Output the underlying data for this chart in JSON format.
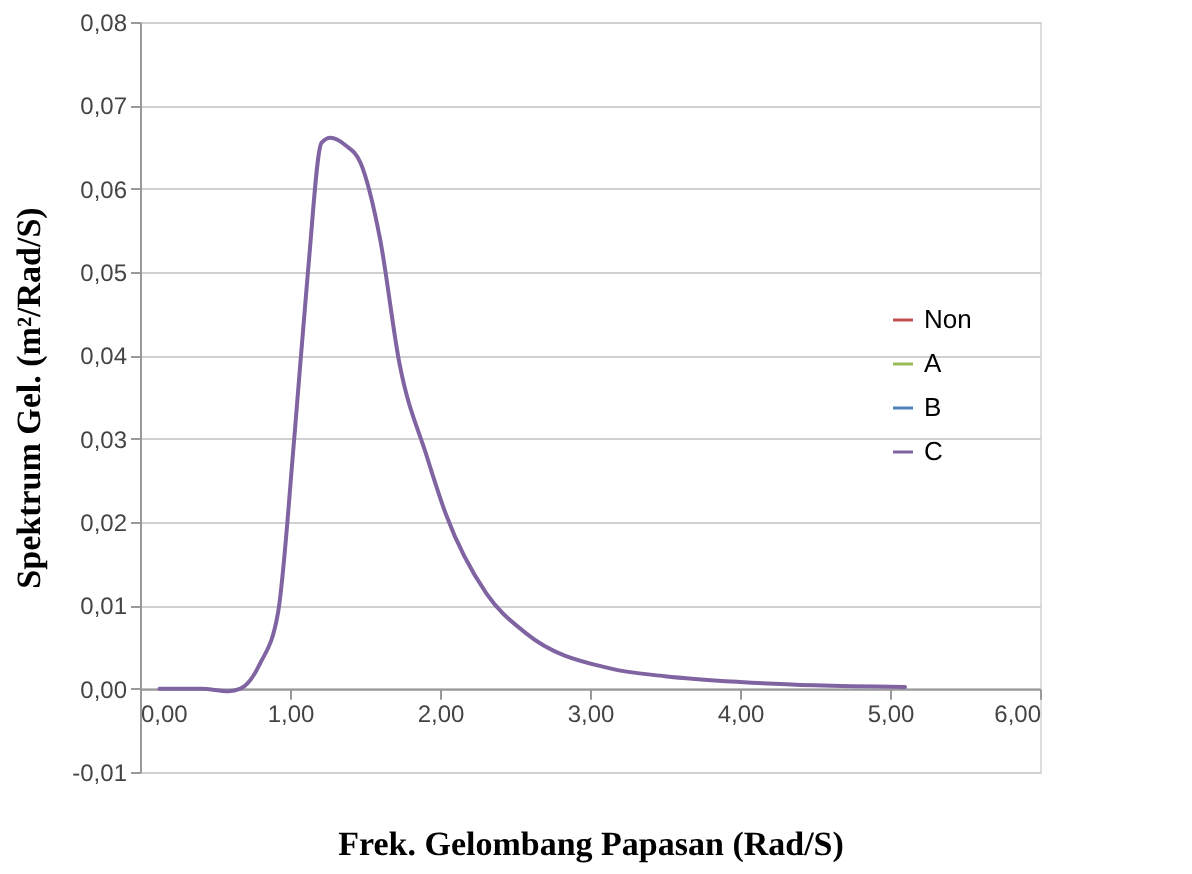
{
  "chart_data": {
    "type": "line",
    "xlabel": "Frek. Gelombang Papasan (Rad/S)",
    "ylabel": "Spektrum Gel. (m²/Rad/S)",
    "x": [
      0.13,
      0.41,
      0.59,
      0.67,
      0.8,
      0.92,
      1.03,
      1.12,
      1.21,
      1.27,
      1.37,
      1.47,
      1.6,
      1.73,
      1.91,
      2.04,
      2.31,
      2.57,
      3.14,
      3.5,
      4.0,
      4.5,
      5.1
    ],
    "series": [
      {
        "name": "Non",
        "color": "#c0504d",
        "values": [
          null,
          null,
          null,
          null,
          null,
          null,
          null,
          null,
          null,
          null,
          null,
          null,
          null,
          null,
          null,
          null,
          null,
          null,
          null,
          null,
          null,
          null,
          null
        ]
      },
      {
        "name": "A",
        "color": "#9bbb59",
        "values": [
          null,
          null,
          null,
          null,
          null,
          null,
          null,
          null,
          null,
          null,
          null,
          null,
          null,
          null,
          null,
          null,
          null,
          null,
          null,
          null,
          null,
          null,
          null
        ]
      },
      {
        "name": "B",
        "color": "#4f81bd",
        "values": [
          null,
          null,
          null,
          null,
          null,
          null,
          null,
          null,
          null,
          null,
          null,
          null,
          null,
          null,
          null,
          null,
          null,
          null,
          null,
          null,
          null,
          null,
          null
        ]
      },
      {
        "name": "C",
        "color": "#8064a2",
        "values": [
          0,
          0,
          -0.0003,
          0,
          0.003,
          0.0091,
          0.0304,
          0.0501,
          0.0655,
          0.0661,
          0.0652,
          0.0631,
          0.054,
          0.039,
          0.028,
          0.0209,
          0.0114,
          0.0067,
          0.0024,
          0.0015,
          0.0008,
          0.0004,
          0.0002
        ]
      }
    ],
    "xlim": [
      0,
      6
    ],
    "xticks": [
      {
        "value": 0,
        "label": "0,00"
      },
      {
        "value": 1,
        "label": "1,00"
      },
      {
        "value": 2,
        "label": "2,00"
      },
      {
        "value": 3,
        "label": "3,00"
      },
      {
        "value": 4,
        "label": "4,00"
      },
      {
        "value": 5,
        "label": "5,00"
      },
      {
        "value": 6,
        "label": "6,00"
      }
    ],
    "ylim": [
      -0.01,
      0.08
    ],
    "yticks": [
      {
        "value": -0.01,
        "label": "-0,01"
      },
      {
        "value": 0,
        "label": "0,00"
      },
      {
        "value": 0.01,
        "label": "0,01"
      },
      {
        "value": 0.02,
        "label": "0,02"
      },
      {
        "value": 0.03,
        "label": "0,03"
      },
      {
        "value": 0.04,
        "label": "0,04"
      },
      {
        "value": 0.05,
        "label": "0,05"
      },
      {
        "value": 0.06,
        "label": "0,06"
      },
      {
        "value": 0.07,
        "label": "0,07"
      },
      {
        "value": 0.08,
        "label": "0,08"
      }
    ],
    "grid": "y",
    "legend": "right",
    "marker": "none",
    "line_style": "solid"
  }
}
